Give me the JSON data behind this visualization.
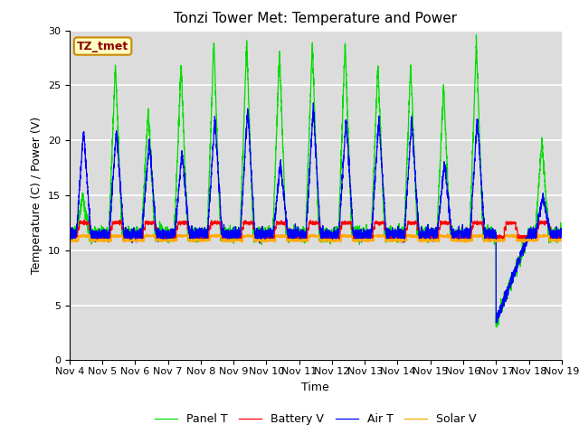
{
  "title": "Tonzi Tower Met: Temperature and Power",
  "xlabel": "Time",
  "ylabel": "Temperature (C) / Power (V)",
  "annotation": "TZ_tmet",
  "ylim": [
    0,
    30
  ],
  "xtick_labels": [
    "Nov 4",
    "Nov 5",
    "Nov 6",
    "Nov 7",
    "Nov 8",
    "Nov 9",
    "Nov 10",
    "Nov 11",
    "Nov 12",
    "Nov 13",
    "Nov 14",
    "Nov 15",
    "Nov 16",
    "Nov 17",
    "Nov 18",
    "Nov 19"
  ],
  "colors": {
    "panel": "#00dd00",
    "battery": "#ff0000",
    "air": "#0000ff",
    "solar": "#ffaa00"
  },
  "bg_color": "#dcdcdc",
  "grid_color": "#ffffff",
  "title_fontsize": 11,
  "label_fontsize": 9,
  "tick_fontsize": 8,
  "legend_fontsize": 9,
  "legend": [
    "Panel T",
    "Battery V",
    "Air T",
    "Solar V"
  ]
}
